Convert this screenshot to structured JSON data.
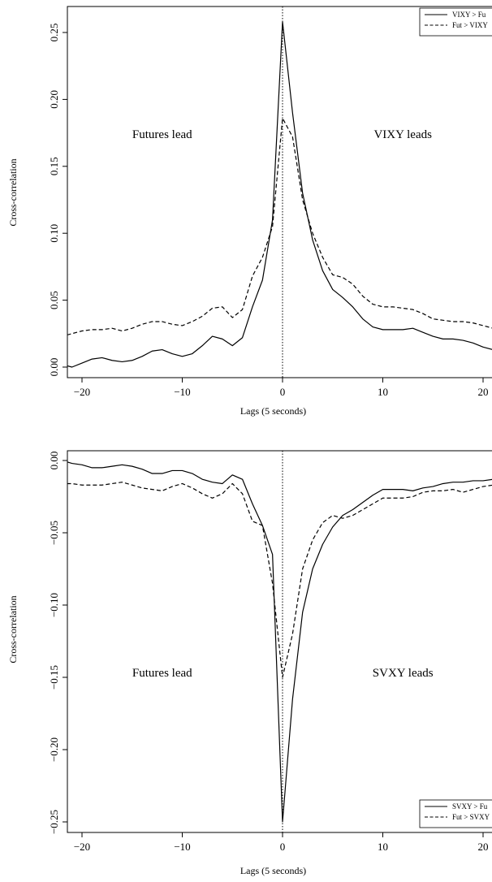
{
  "chart_data": [
    {
      "type": "line",
      "xlabel": "Lags (5 seconds)",
      "ylabel": "Cross-correlation",
      "xlim": [
        -21.5,
        21
      ],
      "ylim": [
        -0.012,
        0.268
      ],
      "x_ticks": [
        -20,
        -10,
        0,
        10,
        20
      ],
      "x_tick_labels": [
        "−20",
        "−10",
        "0",
        "10",
        "20"
      ],
      "y_ticks": [
        0.0,
        0.05,
        0.1,
        0.15,
        0.2,
        0.25
      ],
      "y_tick_labels": [
        "0.00",
        "0.05",
        "0.10",
        "0.15",
        "0.20",
        "0.25"
      ],
      "zero_line": true,
      "annotations": [
        {
          "text": "Futures lead",
          "x": -12,
          "y": 0.175
        },
        {
          "text": "VIXY leads",
          "x": 12,
          "y": 0.175
        }
      ],
      "legend": {
        "position": "top-right",
        "entries": [
          "VIXY > Fu",
          "Fut > VIXY"
        ]
      },
      "series": [
        {
          "name": "VIXY > Fu",
          "style": "solid",
          "x": [
            -21.5,
            -21,
            -20,
            -19,
            -18,
            -17,
            -16,
            -15,
            -14,
            -13,
            -12,
            -11,
            -10,
            -9,
            -8,
            -7,
            -6,
            -5,
            -4,
            -3,
            -2,
            -1,
            0,
            1,
            2,
            3,
            4,
            5,
            6,
            7,
            8,
            9,
            10,
            11,
            12,
            13,
            14,
            15,
            16,
            17,
            18,
            19,
            20,
            21
          ],
          "y": [
            0.001,
            0.0,
            0.003,
            0.006,
            0.007,
            0.005,
            0.004,
            0.005,
            0.008,
            0.012,
            0.013,
            0.01,
            0.008,
            0.01,
            0.016,
            0.023,
            0.021,
            0.016,
            0.022,
            0.045,
            0.065,
            0.11,
            0.258,
            0.19,
            0.13,
            0.095,
            0.072,
            0.058,
            0.052,
            0.045,
            0.036,
            0.03,
            0.028,
            0.028,
            0.028,
            0.029,
            0.026,
            0.023,
            0.021,
            0.021,
            0.02,
            0.018,
            0.015,
            0.013
          ]
        },
        {
          "name": "Fut > VIXY",
          "style": "dashed",
          "x": [
            -21.5,
            -21,
            -20,
            -19,
            -18,
            -17,
            -16,
            -15,
            -14,
            -13,
            -12,
            -11,
            -10,
            -9,
            -8,
            -7,
            -6,
            -5,
            -4,
            -3,
            -2,
            -1,
            0,
            1,
            2,
            3,
            4,
            5,
            6,
            7,
            8,
            9,
            10,
            11,
            12,
            13,
            14,
            15,
            16,
            17,
            18,
            19,
            20,
            21
          ],
          "y": [
            0.024,
            0.025,
            0.027,
            0.028,
            0.028,
            0.029,
            0.027,
            0.029,
            0.032,
            0.034,
            0.034,
            0.032,
            0.031,
            0.034,
            0.038,
            0.044,
            0.045,
            0.037,
            0.043,
            0.068,
            0.082,
            0.105,
            0.186,
            0.172,
            0.125,
            0.1,
            0.082,
            0.069,
            0.067,
            0.062,
            0.053,
            0.047,
            0.045,
            0.045,
            0.044,
            0.043,
            0.04,
            0.036,
            0.035,
            0.034,
            0.034,
            0.033,
            0.031,
            0.029
          ]
        }
      ]
    },
    {
      "type": "line",
      "xlabel": "Lags (5 seconds)",
      "ylabel": "Cross-correlation",
      "xlim": [
        -21.5,
        21
      ],
      "ylim": [
        -0.262,
        0.007
      ],
      "x_ticks": [
        -20,
        -10,
        0,
        10,
        20
      ],
      "x_tick_labels": [
        "−20",
        "−10",
        "0",
        "10",
        "20"
      ],
      "y_ticks": [
        0.0,
        -0.05,
        -0.1,
        -0.15,
        -0.2,
        -0.25
      ],
      "y_tick_labels": [
        "0.00",
        "−0.05",
        "−0.10",
        "−0.15",
        "−0.20",
        "−0.25"
      ],
      "zero_line": true,
      "annotations": [
        {
          "text": "Futures lead",
          "x": -12,
          "y": -0.15
        },
        {
          "text": "SVXY leads",
          "x": 12,
          "y": -0.15
        }
      ],
      "legend": {
        "position": "bottom-right",
        "entries": [
          "SVXY > Fu",
          "Fut > SVXY"
        ]
      },
      "series": [
        {
          "name": "SVXY > Fu",
          "style": "solid",
          "x": [
            -21.5,
            -21,
            -20,
            -19,
            -18,
            -17,
            -16,
            -15,
            -14,
            -13,
            -12,
            -11,
            -10,
            -9,
            -8,
            -7,
            -6,
            -5,
            -4,
            -3,
            -2,
            -1,
            0,
            1,
            2,
            3,
            4,
            5,
            6,
            7,
            8,
            9,
            10,
            11,
            12,
            13,
            14,
            15,
            16,
            17,
            18,
            19,
            20,
            21
          ],
          "y": [
            -0.001,
            -0.002,
            -0.003,
            -0.005,
            -0.005,
            -0.004,
            -0.003,
            -0.004,
            -0.006,
            -0.009,
            -0.009,
            -0.007,
            -0.007,
            -0.009,
            -0.013,
            -0.015,
            -0.016,
            -0.01,
            -0.013,
            -0.03,
            -0.045,
            -0.065,
            -0.25,
            -0.165,
            -0.105,
            -0.075,
            -0.058,
            -0.046,
            -0.038,
            -0.034,
            -0.029,
            -0.024,
            -0.02,
            -0.02,
            -0.02,
            -0.021,
            -0.019,
            -0.018,
            -0.016,
            -0.015,
            -0.015,
            -0.014,
            -0.014,
            -0.013
          ]
        },
        {
          "name": "Fut > SVXY",
          "style": "dashed",
          "x": [
            -21.5,
            -21,
            -20,
            -19,
            -18,
            -17,
            -16,
            -15,
            -14,
            -13,
            -12,
            -11,
            -10,
            -9,
            -8,
            -7,
            -6,
            -5,
            -4,
            -3,
            -2,
            -1,
            0,
            1,
            2,
            3,
            4,
            5,
            6,
            7,
            8,
            9,
            10,
            11,
            12,
            13,
            14,
            15,
            16,
            17,
            18,
            19,
            20,
            21
          ],
          "y": [
            -0.016,
            -0.016,
            -0.017,
            -0.017,
            -0.017,
            -0.016,
            -0.015,
            -0.017,
            -0.019,
            -0.02,
            -0.021,
            -0.018,
            -0.016,
            -0.019,
            -0.023,
            -0.026,
            -0.023,
            -0.016,
            -0.023,
            -0.042,
            -0.045,
            -0.085,
            -0.15,
            -0.12,
            -0.075,
            -0.055,
            -0.043,
            -0.038,
            -0.04,
            -0.038,
            -0.034,
            -0.03,
            -0.026,
            -0.026,
            -0.026,
            -0.025,
            -0.022,
            -0.021,
            -0.021,
            -0.02,
            -0.022,
            -0.02,
            -0.018,
            -0.017
          ]
        }
      ]
    }
  ]
}
